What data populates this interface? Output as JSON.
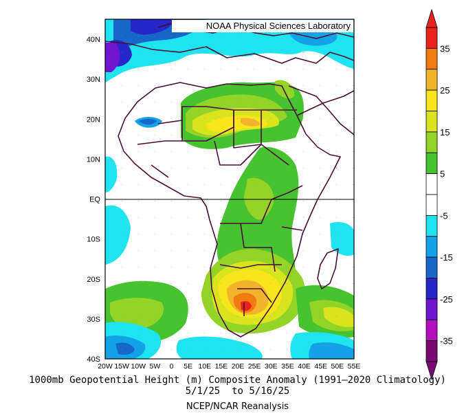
{
  "credit": "NOAA Physical Sciences Laboratory",
  "caption": {
    "line1": "1000mb Geopotential Height (m) Composite Anomaly (1991–2020 Climatology)",
    "line2": "5/1/25  to 5/16/25",
    "line3": "NCEP/NCAR Reanalysis"
  },
  "map": {
    "lon_range": [
      -20,
      55
    ],
    "lat_range": [
      -40,
      45
    ],
    "lat_labels": [
      "40N",
      "30N",
      "20N",
      "10N",
      "EQ",
      "10S",
      "20S",
      "30S",
      "40S"
    ],
    "lon_labels": [
      "20W",
      "15W",
      "10W",
      "5W",
      "0",
      "5E",
      "10E",
      "15E",
      "20E",
      "25E",
      "30E",
      "35E",
      "40E",
      "45E",
      "50E",
      "55E"
    ]
  },
  "colorbar": {
    "labels": [
      "35",
      "25",
      "15",
      "5",
      "-5",
      "-15",
      "-25",
      "-35"
    ],
    "colors": [
      "#e8231e",
      "#f07c12",
      "#f3b42d",
      "#f6e61b",
      "#d7e41e",
      "#94d327",
      "#46c32e",
      "#ffffff",
      "#ffffff",
      "#1fe3ee",
      "#13a2e6",
      "#1767c9",
      "#2626c9",
      "#7116d0",
      "#b40fbf",
      "#790a72"
    ]
  }
}
